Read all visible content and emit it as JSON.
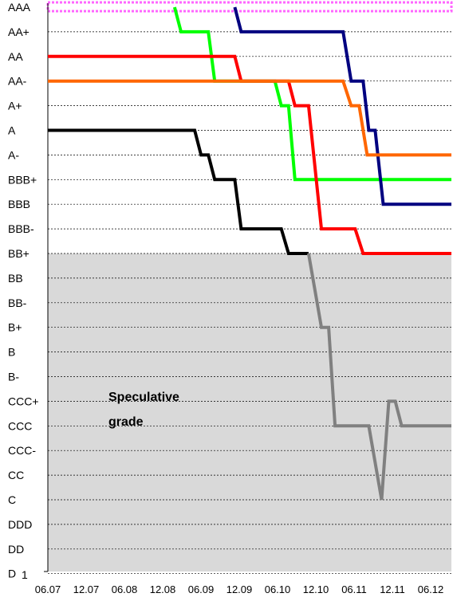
{
  "chart_data": {
    "type": "line",
    "title": "",
    "xlabel": "",
    "ylabel": "",
    "x_ticks": [
      "06.07",
      "12.07",
      "06.08",
      "12.08",
      "06.09",
      "12.09",
      "06.10",
      "12.10",
      "06.11",
      "12.11",
      "06.12"
    ],
    "y_categories": [
      "AAA",
      "AA+",
      "AA",
      "AA-",
      "A+",
      "A",
      "A-",
      "BBB+",
      "BBB",
      "BBB-",
      "BB+",
      "BB",
      "BB-",
      "B+",
      "B",
      "B-",
      "CCC+",
      "CCC",
      "CCC-",
      "CC",
      "C",
      "DDD",
      "DD",
      "D"
    ],
    "y_bottom_label": "1",
    "x_range": [
      2007.42,
      2012.45
    ],
    "shaded_region": {
      "from_rating": "BB+",
      "to_rating": "D",
      "color": "#d9d9d9",
      "label_lines": [
        "Speculative",
        "grade"
      ]
    },
    "top_band_color": "#ff66ff",
    "series": [
      {
        "color": "#00ff00",
        "points": [
          [
            2009.0,
            0
          ],
          [
            2009.08,
            1
          ],
          [
            2009.42,
            1
          ],
          [
            2009.5,
            3
          ],
          [
            2010.25,
            3
          ],
          [
            2010.33,
            4
          ],
          [
            2010.42,
            4
          ],
          [
            2010.5,
            7
          ],
          [
            2012.45,
            7
          ]
        ]
      },
      {
        "color": "#000080",
        "points": [
          [
            2009.75,
            0
          ],
          [
            2009.83,
            1
          ],
          [
            2011.1,
            1
          ],
          [
            2011.2,
            3
          ],
          [
            2011.35,
            3
          ],
          [
            2011.42,
            5
          ],
          [
            2011.5,
            5
          ],
          [
            2011.6,
            8
          ],
          [
            2012.45,
            8
          ]
        ]
      },
      {
        "color": "#ff0000",
        "points": [
          [
            2007.42,
            2
          ],
          [
            2009.75,
            2
          ],
          [
            2009.83,
            3
          ],
          [
            2010.42,
            3
          ],
          [
            2010.5,
            4
          ],
          [
            2010.67,
            4
          ],
          [
            2010.83,
            9
          ],
          [
            2011.25,
            9
          ],
          [
            2011.35,
            10
          ],
          [
            2012.45,
            10
          ]
        ]
      },
      {
        "color": "#ff6600",
        "points": [
          [
            2007.42,
            3
          ],
          [
            2011.1,
            3
          ],
          [
            2011.2,
            4
          ],
          [
            2011.3,
            4
          ],
          [
            2011.4,
            6
          ],
          [
            2012.45,
            6
          ]
        ]
      },
      {
        "color": "#000000",
        "points": [
          [
            2007.42,
            5
          ],
          [
            2009.25,
            5
          ],
          [
            2009.33,
            6
          ],
          [
            2009.42,
            6
          ],
          [
            2009.5,
            7
          ],
          [
            2009.75,
            7
          ],
          [
            2009.83,
            9
          ],
          [
            2010.33,
            9
          ],
          [
            2010.42,
            10
          ],
          [
            2010.67,
            10
          ]
        ]
      },
      {
        "color": "#808080",
        "points": [
          [
            2010.67,
            10
          ],
          [
            2010.83,
            13
          ],
          [
            2010.92,
            13
          ],
          [
            2011.0,
            17
          ],
          [
            2011.42,
            17
          ],
          [
            2011.58,
            20
          ],
          [
            2011.67,
            16
          ],
          [
            2011.75,
            16
          ],
          [
            2011.83,
            17
          ],
          [
            2012.45,
            17
          ]
        ]
      }
    ]
  }
}
